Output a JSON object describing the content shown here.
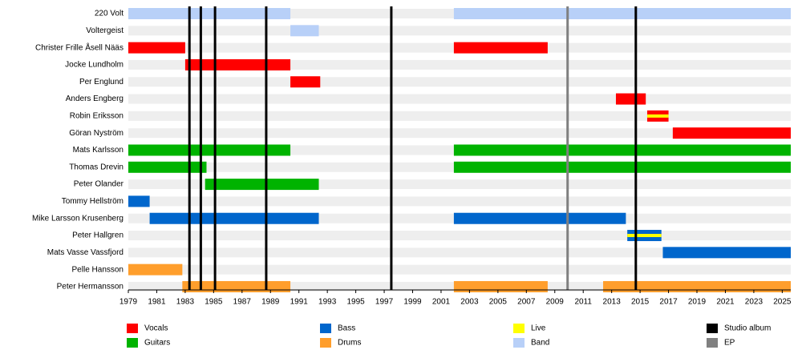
{
  "chart_data": {
    "type": "timeline",
    "categories": [
      "220 Volt",
      "Voltergeist",
      "Christer Frille Åsell Nääs",
      "Jocke Lundholm",
      "Per Englund",
      "Anders Engberg",
      "Robin Eriksson",
      "Göran Nyström",
      "Mats Karlsson",
      "Thomas Drevin",
      "Peter Olander",
      "Tommy Hellström",
      "Mike Larsson Krusenberg",
      "Peter Hallgren",
      "Mats Vasse Vassfjord",
      "Pelle Hansson",
      "Peter Hermansson"
    ],
    "xlim": [
      1979,
      2025.6
    ],
    "xticks": [
      1979,
      1981,
      1983,
      1985,
      1987,
      1989,
      1991,
      1993,
      1995,
      1997,
      1999,
      2001,
      2003,
      2005,
      2007,
      2009,
      2011,
      2013,
      2015,
      2017,
      2019,
      2021,
      2023,
      2025
    ],
    "legend": [
      {
        "name": "Vocals",
        "color": "#ff0000"
      },
      {
        "name": "Guitars",
        "color": "#00b300"
      },
      {
        "name": "Bass",
        "color": "#0066cc"
      },
      {
        "name": "Drums",
        "color": "#ff9e2c"
      },
      {
        "name": "Live",
        "color": "#ffff00"
      },
      {
        "name": "Band",
        "color": "#b8d0f8"
      },
      {
        "name": "Studio album",
        "color": "#000000"
      },
      {
        "name": "EP",
        "color": "#808080"
      }
    ],
    "rows": [
      [
        {
          "role": "Band",
          "start": 1979,
          "end": 1990.4
        },
        {
          "role": "Band",
          "start": 2001.9,
          "end": 2025.6
        }
      ],
      [
        {
          "role": "Band",
          "start": 1990.4,
          "end": 1992.4
        }
      ],
      [
        {
          "role": "Vocals",
          "start": 1979,
          "end": 1983.0
        },
        {
          "role": "Vocals",
          "start": 2001.9,
          "end": 2008.5
        }
      ],
      [
        {
          "role": "Vocals",
          "start": 1983.0,
          "end": 1990.4
        }
      ],
      [
        {
          "role": "Vocals",
          "start": 1990.4,
          "end": 1992.5
        }
      ],
      [
        {
          "role": "Vocals",
          "start": 2013.3,
          "end": 2015.4
        }
      ],
      [
        {
          "role": "Vocals",
          "start": 2015.5,
          "end": 2017.0
        },
        {
          "role": "Live",
          "start": 2015.5,
          "end": 2017.0
        }
      ],
      [
        {
          "role": "Vocals",
          "start": 2017.3,
          "end": 2025.6
        }
      ],
      [
        {
          "role": "Guitars",
          "start": 1979,
          "end": 1990.4
        },
        {
          "role": "Guitars",
          "start": 2001.9,
          "end": 2025.6
        }
      ],
      [
        {
          "role": "Guitars",
          "start": 1979,
          "end": 1984.5
        },
        {
          "role": "Guitars",
          "start": 2001.9,
          "end": 2025.6
        }
      ],
      [
        {
          "role": "Guitars",
          "start": 1984.4,
          "end": 1992.4
        }
      ],
      [
        {
          "role": "Bass",
          "start": 1979,
          "end": 1980.5
        }
      ],
      [
        {
          "role": "Bass",
          "start": 1980.5,
          "end": 1992.4
        },
        {
          "role": "Bass",
          "start": 2001.9,
          "end": 2014.0
        }
      ],
      [
        {
          "role": "Bass",
          "start": 2014.1,
          "end": 2016.5
        },
        {
          "role": "Live",
          "start": 2014.1,
          "end": 2016.5
        }
      ],
      [
        {
          "role": "Bass",
          "start": 2016.6,
          "end": 2025.6
        }
      ],
      [
        {
          "role": "Drums",
          "start": 1979,
          "end": 1982.8
        }
      ],
      [
        {
          "role": "Drums",
          "start": 1982.8,
          "end": 1990.4
        },
        {
          "role": "Drums",
          "start": 2001.9,
          "end": 2008.5
        },
        {
          "role": "Drums",
          "start": 2012.4,
          "end": 2025.6
        }
      ]
    ],
    "events": [
      {
        "role": "Studio album",
        "values": [
          1983.3,
          1984.1,
          1985.1,
          1988.7,
          1997.5,
          2014.7
        ]
      },
      {
        "role": "EP",
        "values": [
          2009.9
        ]
      }
    ]
  }
}
